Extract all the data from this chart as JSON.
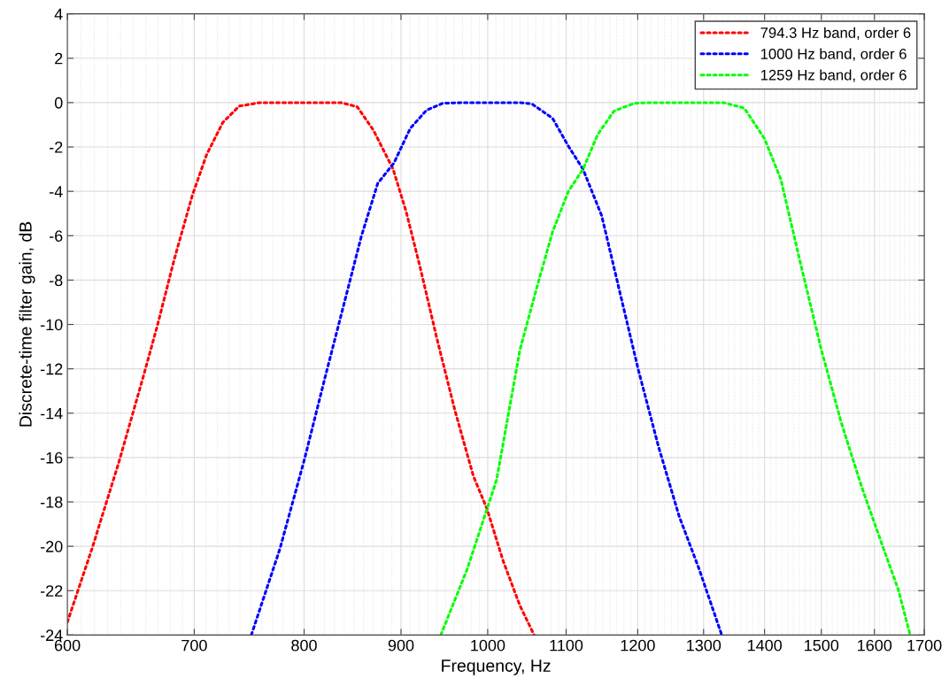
{
  "chart_data": {
    "type": "line",
    "xlabel": "Frequency, Hz",
    "ylabel": "Discrete-time filter gain, dB",
    "log": "x",
    "grid": true,
    "legend": "top right",
    "line_style": "dotted",
    "marker": "none",
    "xlim": [
      600,
      1700
    ],
    "xticks": [
      600,
      700,
      800,
      900,
      1000,
      1100,
      1200,
      1300,
      1400,
      1500,
      1600,
      1700
    ],
    "ylim": [
      -24,
      4
    ],
    "yticks": [
      -24,
      -22,
      -20,
      -18,
      -16,
      -14,
      -12,
      -10,
      -8,
      -6,
      -4,
      -2,
      0,
      2,
      4
    ],
    "series": [
      {
        "name": "794.3 Hz band, order 6",
        "color": "#ff0000",
        "x": [
          600,
          618.7,
          638.9,
          658.1,
          669.6,
          683.0,
          698.4,
          710.6,
          724.8,
          739.3,
          757.8,
          836.7,
          853.4,
          870.4,
          891.4,
          905.7,
          921.5,
          939.9,
          961.1,
          982.7,
          999,
          1019,
          1040,
          1058
        ],
        "values": [
          -23.42,
          -20.02,
          -16.18,
          -12.33,
          -10.0,
          -7.11,
          -4.18,
          -2.35,
          -0.89,
          -0.16,
          0,
          0,
          -0.19,
          -1.25,
          -3.0,
          -4.92,
          -7.48,
          -10.6,
          -13.9,
          -16.83,
          -18.3,
          -20.67,
          -22.68,
          -24
        ]
      },
      {
        "name": "1000 Hz band, order 6",
        "color": "#0000ff",
        "x": [
          750.3,
          776.8,
          800.3,
          820.4,
          841.0,
          857.7,
          874.9,
          892.3,
          910.2,
          928.4,
          946.9,
          970.6,
          1039.9,
          1055.4,
          1081.9,
          1103.5,
          1122.8,
          1148.6,
          1171.6,
          1201,
          1231,
          1262,
          1293,
          1329
        ],
        "values": [
          -24,
          -20.12,
          -16.09,
          -12.43,
          -8.86,
          -6.02,
          -3.64,
          -2.72,
          -1.16,
          -0.34,
          -0.03,
          0,
          0,
          -0.06,
          -0.7,
          -1.99,
          -3.0,
          -5.1,
          -8.2,
          -12.06,
          -15.54,
          -18.65,
          -21.03,
          -24
        ]
      },
      {
        "name": "1259 Hz band, order 6",
        "color": "#00ff00",
        "x": [
          944.6,
          975.4,
          1010.9,
          1040,
          1061,
          1082,
          1103,
          1122.8,
          1143,
          1166,
          1195,
          1219,
          1332,
          1366,
          1400,
          1428,
          1463,
          1500,
          1537,
          1576,
          1615,
          1647,
          1671
        ],
        "values": [
          -24,
          -21.03,
          -17.0,
          -11.14,
          -8.4,
          -5.83,
          -4.0,
          -3.0,
          -1.44,
          -0.38,
          -0.03,
          0,
          0,
          -0.25,
          -1.63,
          -3.46,
          -7.3,
          -11.14,
          -14.44,
          -17.37,
          -19.93,
          -21.95,
          -24
        ]
      }
    ]
  }
}
